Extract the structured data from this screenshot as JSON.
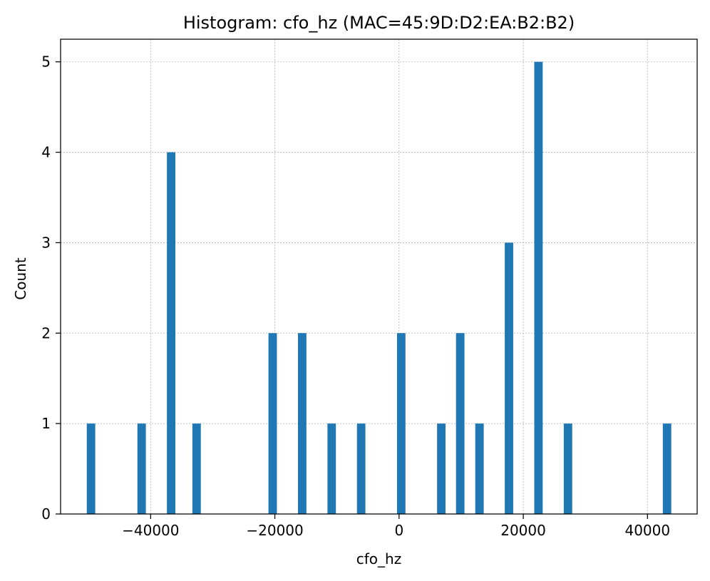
{
  "chart_data": {
    "type": "bar",
    "title": "Histogram: cfo_hz (MAC=45:9D:D2:EA:B2:B2)",
    "xlabel": "cfo_hz",
    "ylabel": "Count",
    "xlim": [
      -54500,
      48000
    ],
    "ylim": [
      0,
      5.25
    ],
    "bin_width": 1360,
    "x_ticks": [
      -40000,
      -20000,
      0,
      20000,
      40000
    ],
    "x_tick_labels": [
      "−40000",
      "−20000",
      "0",
      "20000",
      "40000"
    ],
    "y_ticks": [
      0,
      1,
      2,
      3,
      4,
      5
    ],
    "y_tick_labels": [
      "0",
      "1",
      "2",
      "3",
      "4",
      "5"
    ],
    "grid": true,
    "bar_color": "#1f77b4",
    "bins": [
      {
        "x": -49600,
        "value": 1
      },
      {
        "x": -41450,
        "value": 1
      },
      {
        "x": -36700,
        "value": 4
      },
      {
        "x": -32600,
        "value": 1
      },
      {
        "x": -20350,
        "value": 2
      },
      {
        "x": -15600,
        "value": 2
      },
      {
        "x": -10850,
        "value": 1
      },
      {
        "x": -6100,
        "value": 1
      },
      {
        "x": 350,
        "value": 2
      },
      {
        "x": 6800,
        "value": 1
      },
      {
        "x": 9850,
        "value": 2
      },
      {
        "x": 12950,
        "value": 1
      },
      {
        "x": 17700,
        "value": 3
      },
      {
        "x": 22450,
        "value": 5
      },
      {
        "x": 27200,
        "value": 1
      },
      {
        "x": 43150,
        "value": 1
      }
    ]
  }
}
